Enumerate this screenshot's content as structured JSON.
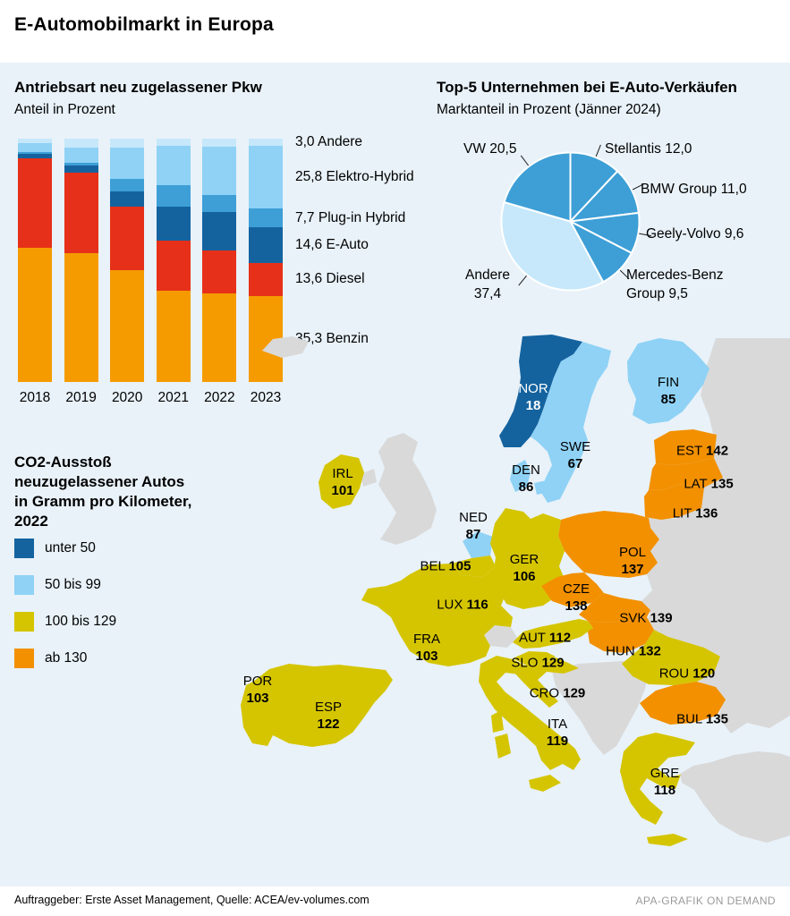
{
  "header": {
    "title": "E-Automobilmarkt in Europa"
  },
  "footer": {
    "source": "Auftraggeber: Erste Asset Management, Quelle: ACEA/ev-volumes.com",
    "credit": "APA-GRAFIK ON DEMAND"
  },
  "colors": {
    "panel_background": "#e9f2f9"
  },
  "chart_data": [
    {
      "type": "bar",
      "stacked": true,
      "title": "Antriebsart neu zugelassener Pkw",
      "subtitle": "Anteil in Prozent",
      "categories": [
        "2018",
        "2019",
        "2020",
        "2021",
        "2022",
        "2023"
      ],
      "ylim": [
        0,
        100
      ],
      "grid": false,
      "legend_position": "right",
      "series": [
        {
          "name": "Benzin",
          "label_2023": "35,3 Benzin",
          "color": "#f59b00",
          "values": [
            55.0,
            53.0,
            46.0,
            37.5,
            36.5,
            35.3
          ]
        },
        {
          "name": "Diesel",
          "label_2023": "13,6 Diesel",
          "color": "#e63019",
          "values": [
            37.0,
            33.0,
            26.0,
            20.5,
            17.5,
            13.6
          ]
        },
        {
          "name": "E-Auto",
          "label_2023": "14,6 E-Auto",
          "color": "#14639f",
          "values": [
            1.7,
            2.8,
            6.3,
            13.9,
            15.9,
            14.6
          ]
        },
        {
          "name": "Plug-in Hybrid",
          "label_2023": "7,7 Plug-in Hybrid",
          "color": "#3d9fd6",
          "values": [
            0.8,
            1.2,
            5.0,
            9.0,
            6.8,
            7.7
          ]
        },
        {
          "name": "Elektro-Hybrid",
          "label_2023": "25,8 Elektro-Hybrid",
          "color": "#8fd2f5",
          "values": [
            3.5,
            6.5,
            13.0,
            16.0,
            20.0,
            25.8
          ]
        },
        {
          "name": "Andere",
          "label_2023": "3,0 Andere",
          "color": "#c6e8fa",
          "values": [
            2.0,
            3.5,
            3.7,
            3.1,
            3.3,
            3.0
          ]
        }
      ]
    },
    {
      "type": "pie",
      "title": "Top-5 Unternehmen bei E-Auto-Verkäufen",
      "subtitle": "Marktanteil in Prozent (Jänner 2024)",
      "start_angle_deg": 0,
      "direction": "clockwise",
      "slices": [
        {
          "name": "Stellantis",
          "value": 12.0,
          "label": "Stellantis 12,0",
          "color": "#3d9fd6"
        },
        {
          "name": "BMW Group",
          "value": 11.0,
          "label": "BMW Group 11,0",
          "color": "#3d9fd6"
        },
        {
          "name": "Geely-Volvo",
          "value": 9.6,
          "label": "Geely-Volvo 9,6",
          "color": "#3d9fd6"
        },
        {
          "name": "Mercedes-Benz Group",
          "value": 9.5,
          "label": "Mercedes-Benz\nGroup 9,5",
          "color": "#3d9fd6"
        },
        {
          "name": "Andere",
          "value": 37.4,
          "label": "Andere\n37,4",
          "color": "#c6e8fa"
        },
        {
          "name": "VW",
          "value": 20.5,
          "label": "VW 20,5",
          "color": "#3d9fd6"
        }
      ]
    },
    {
      "type": "heatmap",
      "subtype": "choropleth-europe",
      "title": "CO2-Ausstoß neuzugelassener Autos in Gramm pro Kilometer, 2022",
      "nodata_color": "#d9d9d9",
      "legend": [
        {
          "key": "under50",
          "label": "unter 50",
          "color": "#14639f"
        },
        {
          "key": "b50_99",
          "label": "50 bis 99",
          "color": "#8fd2f5"
        },
        {
          "key": "b100_129",
          "label": "100 bis 129",
          "color": "#d5c500"
        },
        {
          "key": "ab130",
          "label": "ab 130",
          "color": "#f29000"
        }
      ],
      "countries": [
        {
          "code": "NOR",
          "value": 18,
          "category": "under50"
        },
        {
          "code": "SWE",
          "value": 67,
          "category": "b50_99"
        },
        {
          "code": "FIN",
          "value": 85,
          "category": "b50_99"
        },
        {
          "code": "DEN",
          "value": 86,
          "category": "b50_99"
        },
        {
          "code": "NED",
          "value": 87,
          "category": "b50_99"
        },
        {
          "code": "IRL",
          "value": 101,
          "category": "b100_129"
        },
        {
          "code": "POR",
          "value": 103,
          "category": "b100_129"
        },
        {
          "code": "FRA",
          "value": 103,
          "category": "b100_129"
        },
        {
          "code": "BEL",
          "value": 105,
          "category": "b100_129"
        },
        {
          "code": "GER",
          "value": 106,
          "category": "b100_129"
        },
        {
          "code": "AUT",
          "value": 112,
          "category": "b100_129"
        },
        {
          "code": "LUX",
          "value": 116,
          "category": "b100_129"
        },
        {
          "code": "GRE",
          "value": 118,
          "category": "b100_129"
        },
        {
          "code": "ITA",
          "value": 119,
          "category": "b100_129"
        },
        {
          "code": "ROU",
          "value": 120,
          "category": "b100_129"
        },
        {
          "code": "ESP",
          "value": 122,
          "category": "b100_129"
        },
        {
          "code": "SLO",
          "value": 129,
          "category": "b100_129"
        },
        {
          "code": "CRO",
          "value": 129,
          "category": "b100_129"
        },
        {
          "code": "HUN",
          "value": 132,
          "category": "ab130"
        },
        {
          "code": "LAT",
          "value": 135,
          "category": "ab130"
        },
        {
          "code": "BUL",
          "value": 135,
          "category": "ab130"
        },
        {
          "code": "LIT",
          "value": 136,
          "category": "ab130"
        },
        {
          "code": "POL",
          "value": 137,
          "category": "ab130"
        },
        {
          "code": "CZE",
          "value": 138,
          "category": "ab130"
        },
        {
          "code": "SVK",
          "value": 139,
          "category": "ab130"
        },
        {
          "code": "EST",
          "value": 142,
          "category": "ab130"
        }
      ]
    }
  ]
}
